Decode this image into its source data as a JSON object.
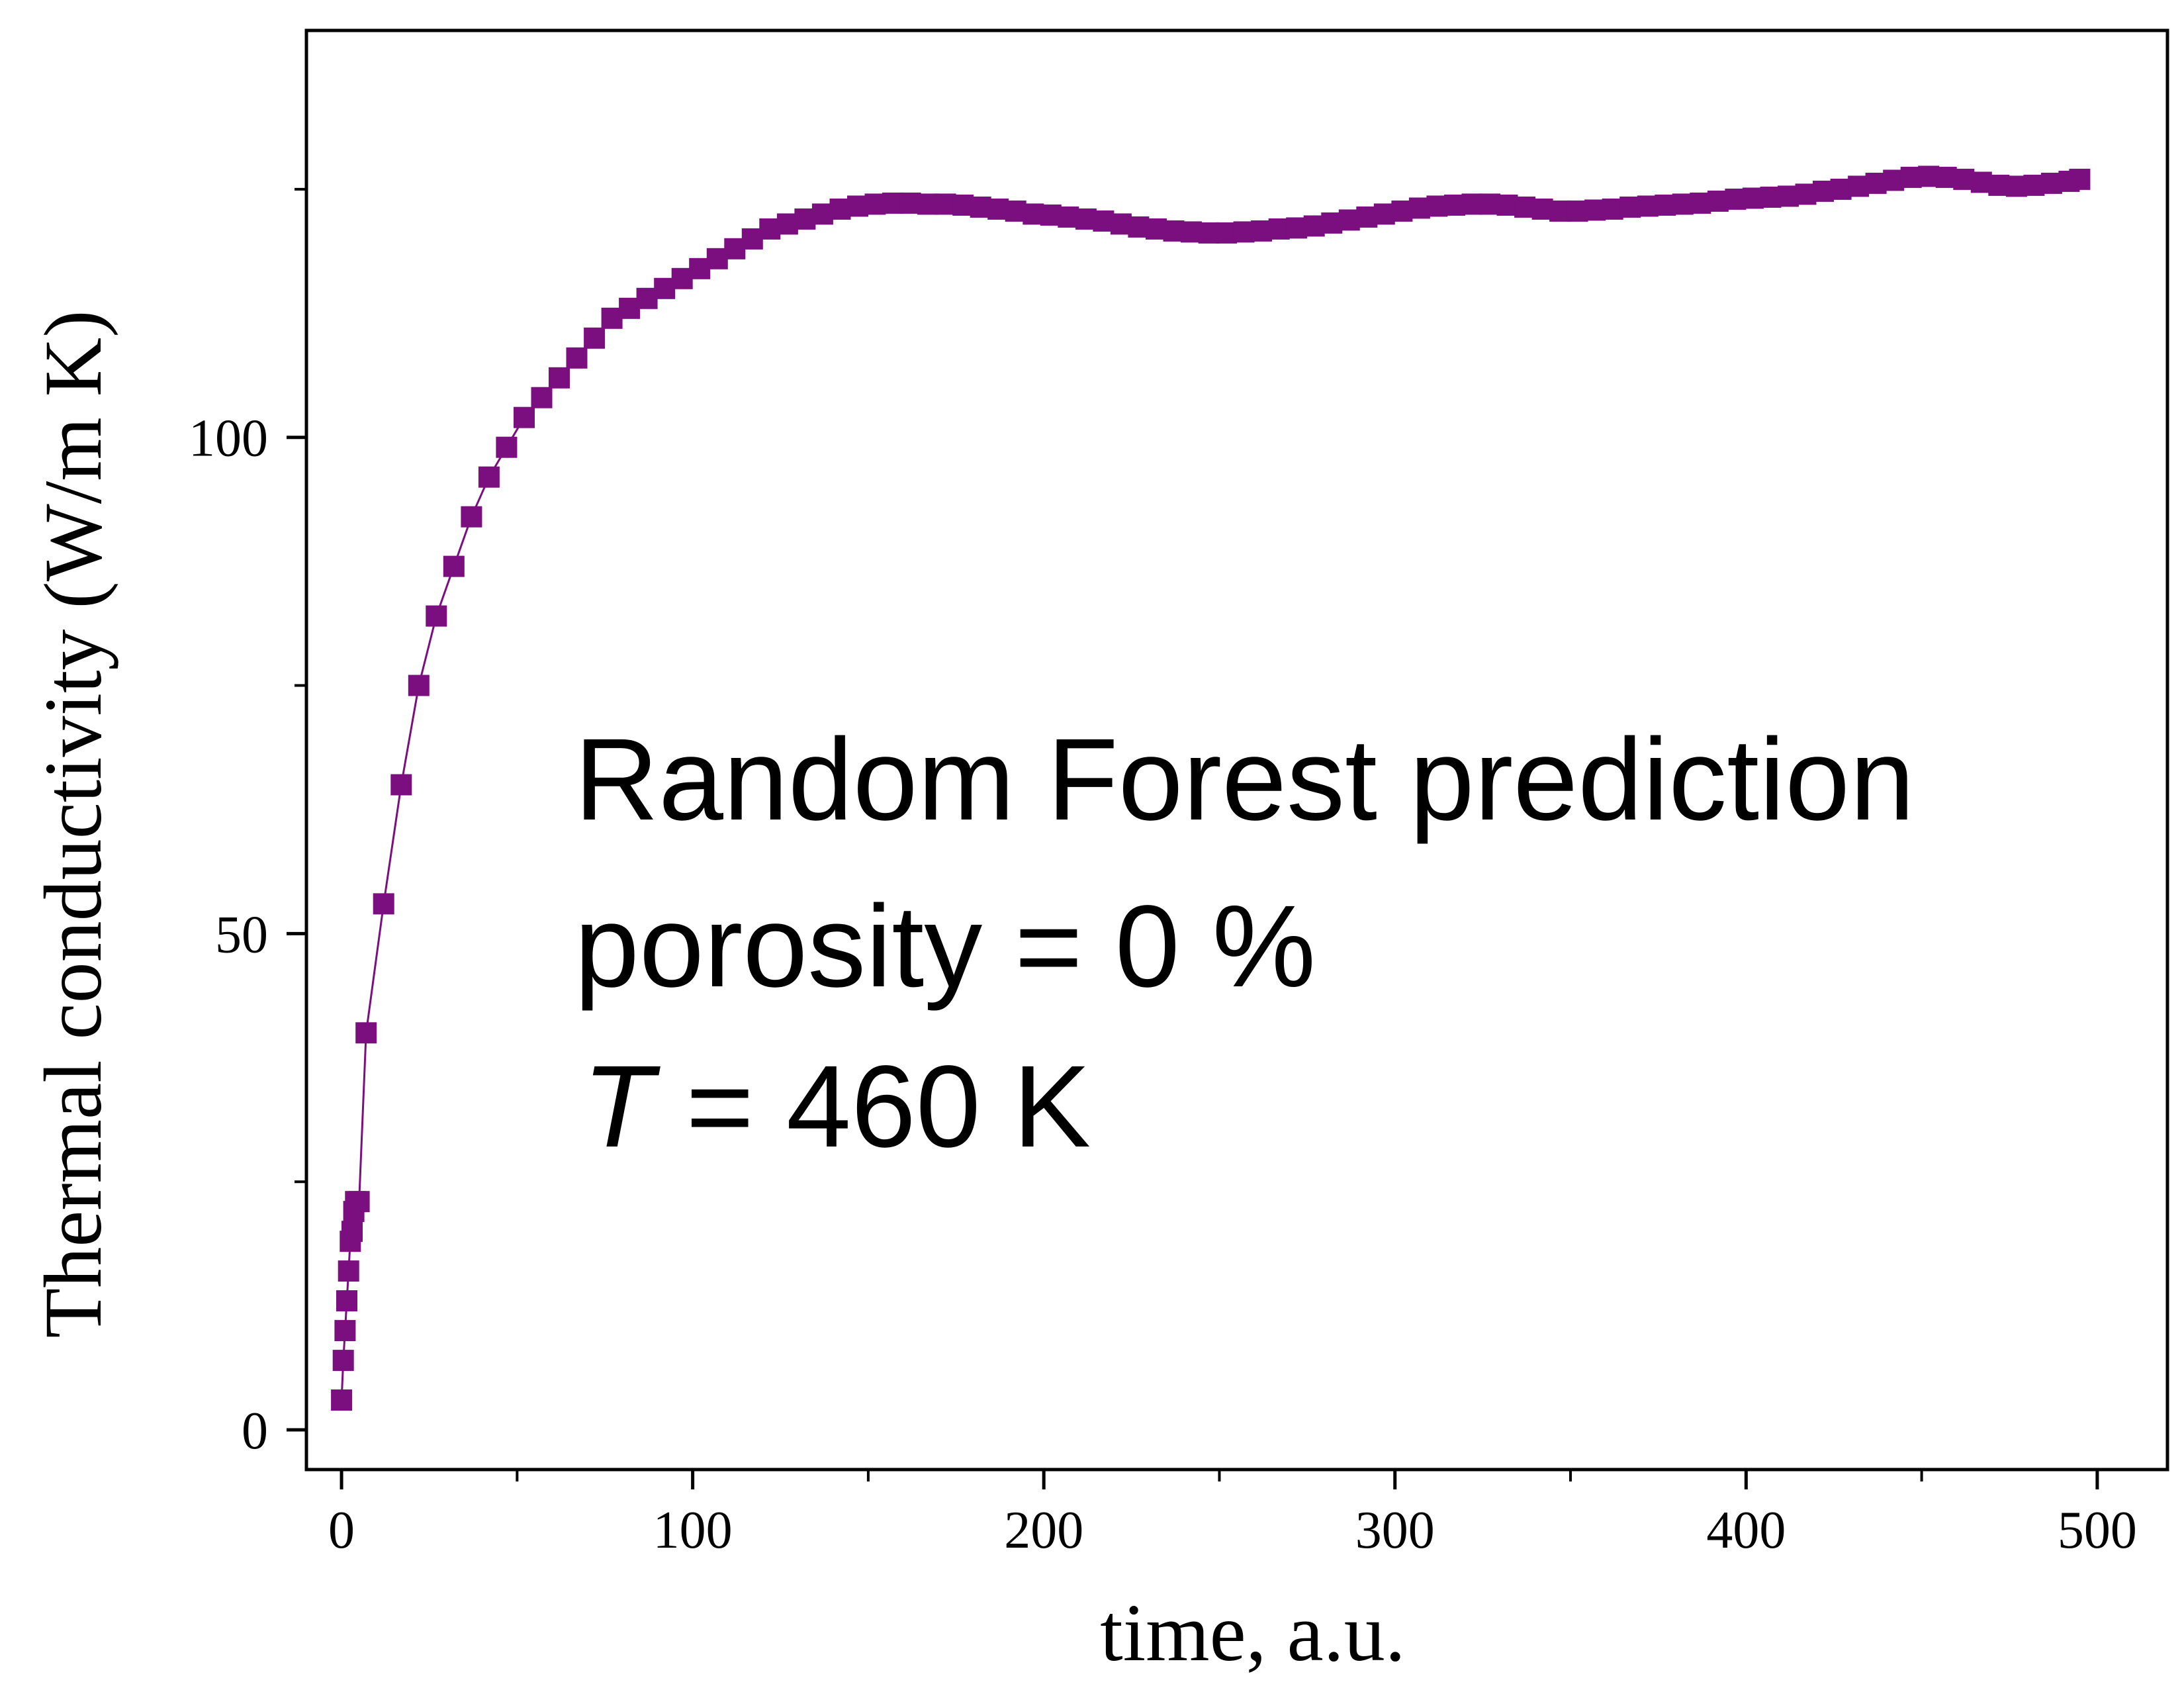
{
  "chart_data": {
    "type": "scatter",
    "xlabel": "time, a.u.",
    "ylabel": "Thermal conductivity (W/m K)",
    "xlim": [
      -10,
      520
    ],
    "ylim": [
      -4,
      141
    ],
    "x_ticks": [
      0,
      100,
      200,
      300,
      400,
      500
    ],
    "y_ticks": [
      0,
      50,
      100
    ],
    "grid": false,
    "legend": "none",
    "marker": "square",
    "connected": true,
    "color": "#7b0f7f",
    "annotations": {
      "line1": "Random Forest prediction",
      "line2": "porosity = 0 %",
      "line3_var": "T",
      "line3_rest": " = 460 K"
    },
    "series": [
      {
        "x": [
          0,
          0.5,
          1,
          1.5,
          2,
          2.5,
          3,
          3.5,
          4,
          5,
          7,
          12,
          17,
          22,
          27,
          32,
          37,
          42,
          47,
          52,
          57,
          62,
          67,
          72,
          77,
          82,
          87,
          92,
          97,
          102,
          107,
          112,
          117,
          122,
          127,
          132,
          137,
          142,
          147,
          152,
          157,
          162,
          167,
          172,
          177,
          182,
          187,
          192,
          197,
          202,
          207,
          212,
          217,
          222,
          227,
          232,
          237,
          242,
          247,
          252,
          257,
          262,
          267,
          272,
          277,
          282,
          287,
          292,
          297,
          302,
          307,
          312,
          317,
          322,
          327,
          332,
          337,
          342,
          347,
          352,
          357,
          362,
          367,
          372,
          377,
          382,
          387,
          392,
          397,
          402,
          407,
          412,
          417,
          422,
          427,
          432,
          437,
          442,
          447,
          452,
          457,
          462,
          467,
          472,
          477,
          482,
          487,
          492,
          495
        ],
        "y": [
          3,
          7,
          10,
          13,
          16,
          19,
          20,
          22,
          23,
          23,
          40,
          53,
          65,
          75,
          82,
          87,
          92,
          96,
          99,
          102,
          104,
          106,
          108,
          110,
          112,
          113,
          114,
          115,
          116,
          117,
          118,
          119,
          120,
          121,
          121.5,
          122,
          122.5,
          123,
          123.3,
          123.5,
          123.6,
          123.6,
          123.5,
          123.5,
          123.4,
          123.2,
          123,
          122.8,
          122.5,
          122.4,
          122.2,
          122,
          121.8,
          121.5,
          121.2,
          121,
          120.8,
          120.7,
          120.6,
          120.6,
          120.7,
          120.8,
          121,
          121.1,
          121.3,
          121.6,
          121.9,
          122.2,
          122.5,
          122.8,
          123.1,
          123.3,
          123.4,
          123.5,
          123.5,
          123.4,
          123.2,
          123,
          122.8,
          122.8,
          122.9,
          123,
          123.2,
          123.3,
          123.4,
          123.5,
          123.6,
          123.8,
          124,
          124.1,
          124.2,
          124.3,
          124.5,
          124.8,
          125,
          125.3,
          125.6,
          125.9,
          126.2,
          126.3,
          126.2,
          126,
          125.7,
          125.4,
          125.3,
          125.4,
          125.6,
          125.8,
          126
        ]
      }
    ]
  }
}
